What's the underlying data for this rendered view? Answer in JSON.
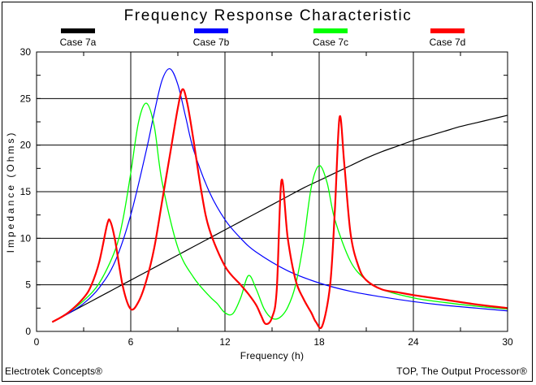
{
  "chart_data": {
    "type": "line",
    "title": "Frequency Response Characteristic",
    "xlabel": "Frequency (h)",
    "ylabel": "Impedance (Ohms)",
    "xlim": [
      0,
      30
    ],
    "ylim": [
      0,
      30
    ],
    "xticks": [
      "0",
      "6",
      "12",
      "18",
      "24",
      "30"
    ],
    "yticks": [
      "0",
      "5",
      "10",
      "15",
      "20",
      "25",
      "30"
    ],
    "grid": true,
    "legend_position": "top",
    "series": [
      {
        "name": "Case 7a",
        "color": "#000000",
        "x": [
          1,
          2,
          3,
          4,
          5,
          6,
          7,
          8,
          9,
          10,
          11,
          12,
          13,
          14,
          15,
          16,
          17,
          18,
          19,
          20,
          21,
          22,
          23,
          24,
          25,
          26,
          27,
          28,
          29,
          30
        ],
        "y": [
          1.0,
          1.9,
          2.8,
          3.7,
          4.6,
          5.5,
          6.4,
          7.3,
          8.2,
          9.1,
          10.0,
          10.9,
          11.8,
          12.7,
          13.6,
          14.5,
          15.4,
          16.2,
          17.0,
          17.8,
          18.6,
          19.3,
          19.9,
          20.5,
          21.0,
          21.5,
          22.0,
          22.4,
          22.8,
          23.2
        ]
      },
      {
        "name": "Case 7b",
        "color": "#0000ff",
        "x": [
          1,
          2,
          3,
          4,
          5,
          6,
          7,
          7.5,
          8,
          8.5,
          9,
          9.5,
          10,
          11,
          12,
          13,
          14,
          16,
          18,
          20,
          22,
          24,
          26,
          28,
          30
        ],
        "y": [
          1.0,
          1.9,
          3.0,
          4.7,
          7.5,
          12.5,
          19.5,
          23.5,
          27.0,
          28.2,
          26.5,
          23.0,
          19.5,
          15.0,
          12.0,
          10.0,
          8.5,
          6.5,
          5.2,
          4.3,
          3.7,
          3.2,
          2.8,
          2.5,
          2.2
        ]
      },
      {
        "name": "Case 7c",
        "color": "#00ff00",
        "x": [
          1,
          2,
          3,
          4,
          5,
          5.5,
          6,
          6.5,
          7,
          7.5,
          8,
          9,
          10,
          11,
          11.5,
          12,
          12.5,
          13,
          13.5,
          14,
          14.5,
          15,
          15.5,
          16,
          16.5,
          17,
          17.5,
          18,
          18.5,
          19,
          20,
          21,
          22,
          24,
          26,
          28,
          30
        ],
        "y": [
          1.0,
          2.0,
          3.3,
          5.2,
          8.7,
          12.0,
          17.0,
          22.5,
          24.5,
          22.0,
          16.0,
          9.0,
          5.8,
          3.8,
          3.0,
          2.0,
          1.9,
          3.6,
          6.0,
          4.5,
          2.4,
          1.4,
          1.5,
          2.6,
          5.0,
          9.5,
          15.5,
          17.8,
          16.0,
          12.0,
          7.5,
          5.5,
          4.5,
          3.6,
          3.1,
          2.7,
          2.4
        ]
      },
      {
        "name": "Case 7d",
        "color": "#ff0000",
        "x": [
          1,
          2,
          3,
          3.5,
          4,
          4.5,
          4.7,
          5,
          5.5,
          6,
          6.5,
          7,
          7.5,
          8,
          8.5,
          9,
          9.3,
          9.6,
          10,
          10.5,
          11,
          12,
          13,
          13.5,
          14,
          14.3,
          14.6,
          15,
          15.3,
          15.6,
          16,
          16.5,
          17,
          17.5,
          17.8,
          18.2,
          18.7,
          19,
          19.3,
          19.6,
          20,
          20.5,
          21,
          22,
          23,
          24,
          26,
          28,
          30
        ],
        "y": [
          1.0,
          2.0,
          3.6,
          5.0,
          7.5,
          11.5,
          11.8,
          9.8,
          4.8,
          2.4,
          3.2,
          5.5,
          9.0,
          14.0,
          19.0,
          24.0,
          26.0,
          24.5,
          20.5,
          15.0,
          11.0,
          7.0,
          5.0,
          4.0,
          2.8,
          1.7,
          0.8,
          1.5,
          4.5,
          16.2,
          10.0,
          5.5,
          3.5,
          2.0,
          1.0,
          0.6,
          5.0,
          13.0,
          23.0,
          18.0,
          10.5,
          7.0,
          5.5,
          4.5,
          4.2,
          3.9,
          3.4,
          2.9,
          2.5
        ]
      }
    ]
  },
  "footer": {
    "left": "Electrotek Concepts®",
    "right": "TOP, The Output Processor®"
  }
}
